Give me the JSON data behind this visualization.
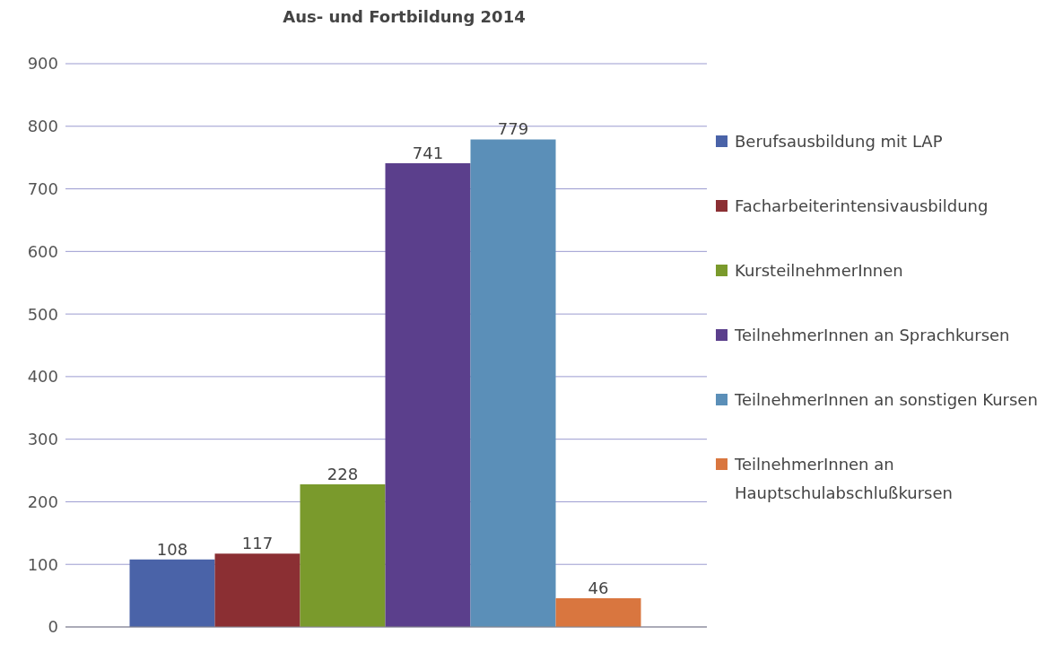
{
  "chart_data": {
    "type": "bar",
    "title": "Aus- und Fortbildung 2014",
    "categories": [
      null
    ],
    "series": [
      {
        "name": "Berufsausbildung mit LAP",
        "color": "#4a63a8",
        "values": [
          108
        ]
      },
      {
        "name": "Facharbeiterintensivausbildung",
        "color": "#8b2f33",
        "values": [
          117
        ]
      },
      {
        "name": "KursteilnehmerInnen",
        "color": "#7a9a2c",
        "values": [
          228
        ]
      },
      {
        "name": "TeilnehmerInnen an Sprachkursen",
        "color": "#5b3f8c",
        "values": [
          741
        ]
      },
      {
        "name": "TeilnehmerInnen an sonstigen Kursen",
        "color": "#5b8fb8",
        "values": [
          779
        ]
      },
      {
        "name": "TeilnehmerInnen an Hauptschulabschlußkursen",
        "color": "#d9763f",
        "values": [
          46
        ]
      }
    ],
    "ylim": [
      0,
      900
    ],
    "yticks": [
      0,
      100,
      200,
      300,
      400,
      500,
      600,
      700,
      800,
      900
    ],
    "grid": "y",
    "legend": "right",
    "data_labels": true
  }
}
